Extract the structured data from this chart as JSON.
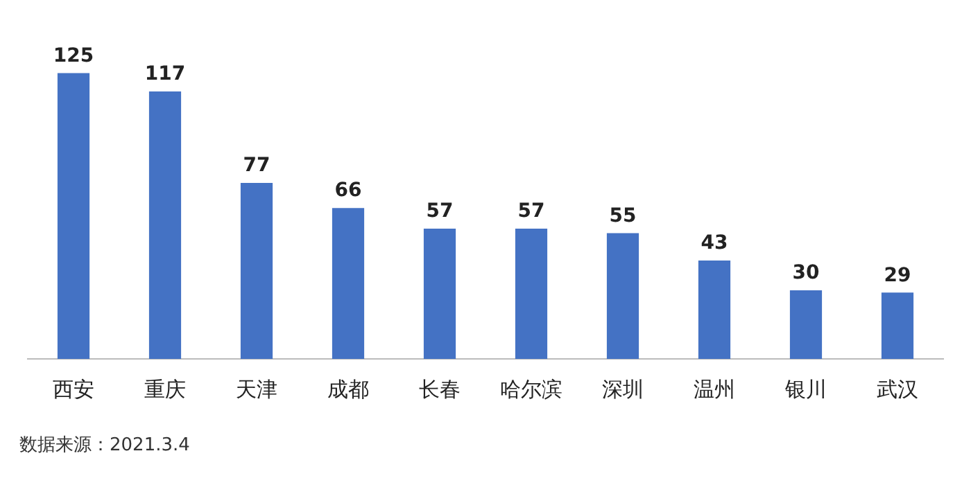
{
  "chart_data": {
    "type": "bar",
    "categories": [
      "西安",
      "重庆",
      "天津",
      "成都",
      "长春",
      "哈尔滨",
      "深圳",
      "温州",
      "银川",
      "武汉"
    ],
    "values": [
      125,
      117,
      77,
      66,
      57,
      57,
      55,
      43,
      30,
      29
    ],
    "color": "#4472c4",
    "data_labels": true,
    "annotations": [
      "数据来源：2021.3.4"
    ]
  }
}
